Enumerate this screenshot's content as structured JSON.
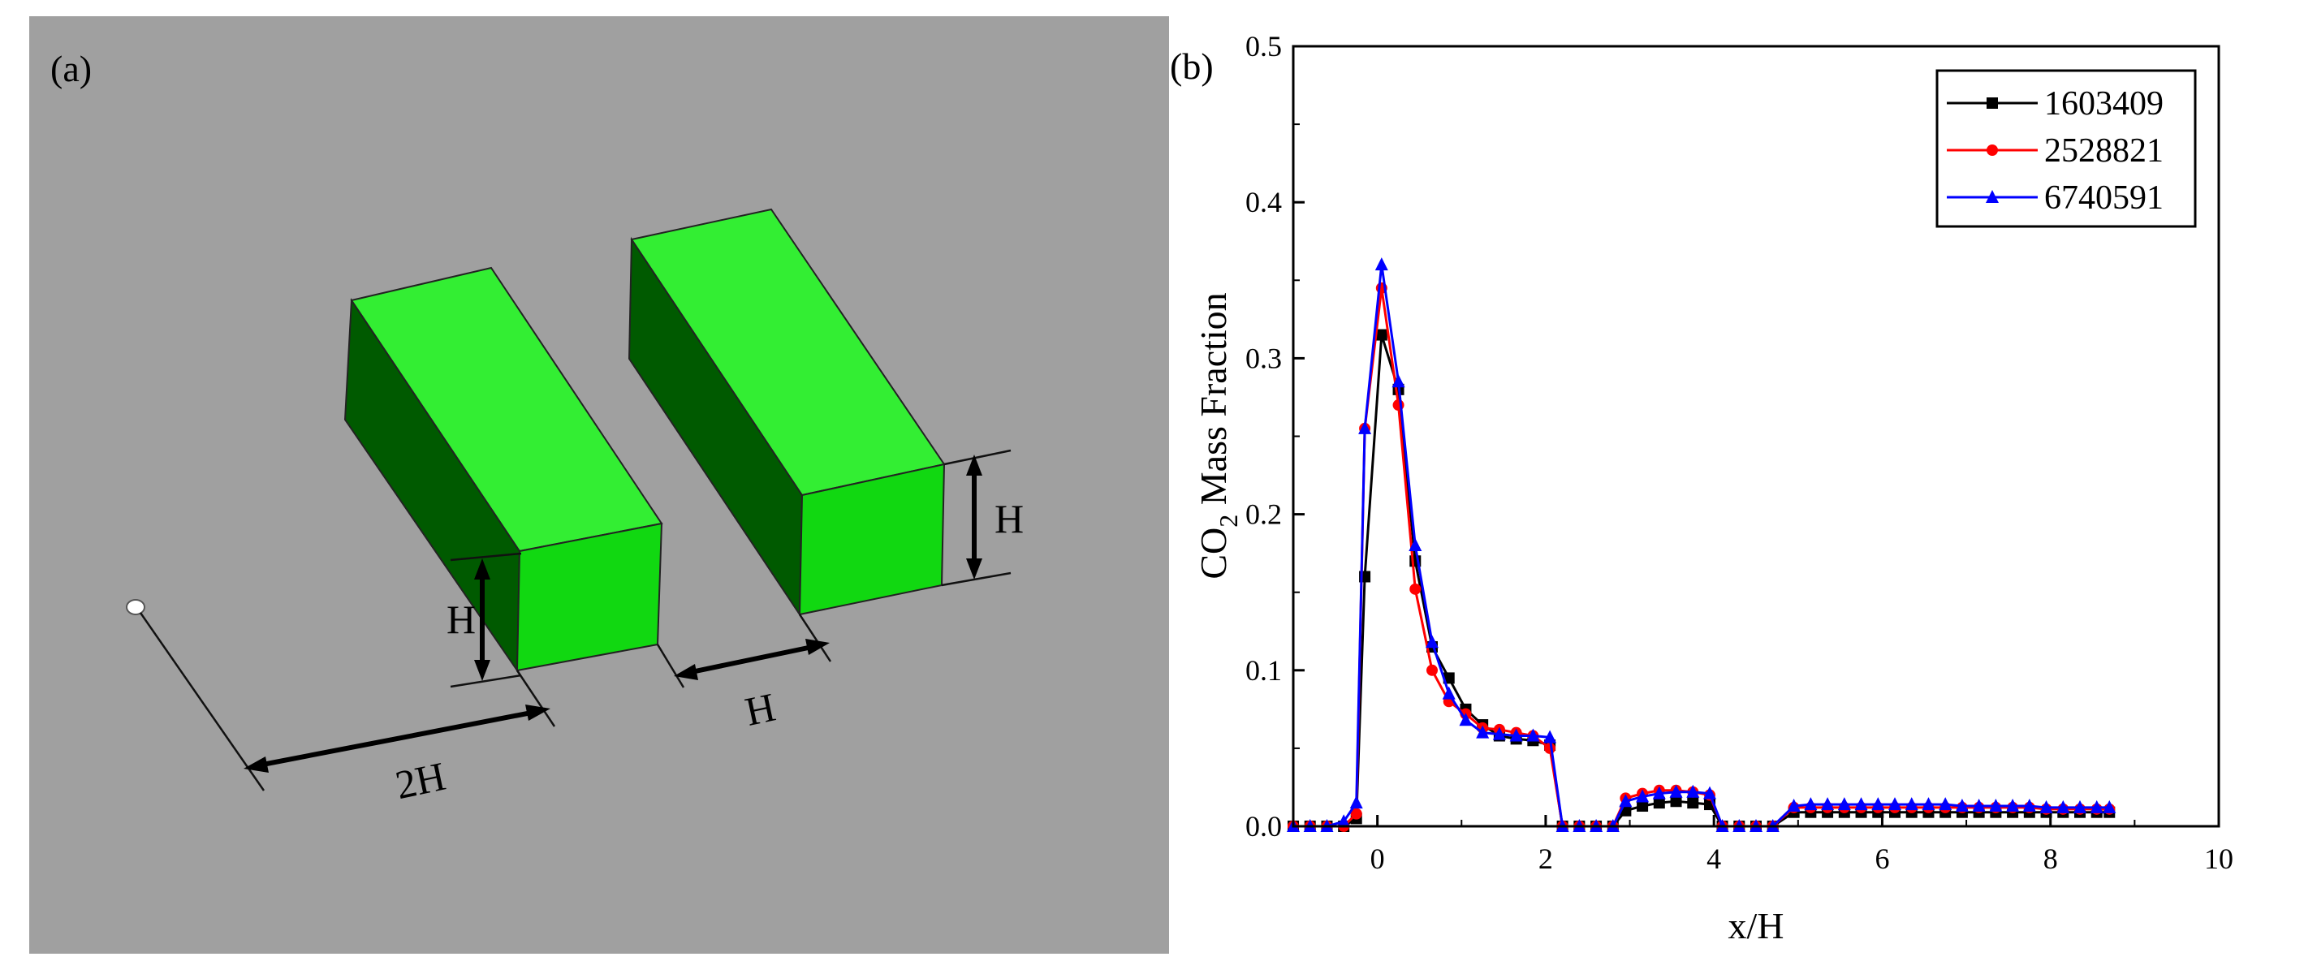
{
  "panel_a": {
    "label": "(a)",
    "dim_left_height": "H",
    "dim_right_height": "H",
    "dim_gap": "H",
    "dim_upstream": "2H",
    "colors": {
      "background": "#a0a0a0",
      "block_top": "#33ee33",
      "block_side": "#005a00",
      "block_front": "#11d811",
      "edge": "#222222"
    }
  },
  "panel_b": {
    "label": "(b)"
  },
  "chart_data": {
    "type": "line",
    "title": "",
    "xlabel": "x/H",
    "ylabel_main": "CO",
    "ylabel_sub": "2",
    "ylabel_rest": " Mass Fraction",
    "xlim": [
      -1,
      10
    ],
    "ylim": [
      0,
      0.5
    ],
    "xticks": [
      0,
      2,
      4,
      6,
      8,
      10
    ],
    "xtick_labels": [
      "0",
      "2",
      "4",
      "6",
      "8",
      "10"
    ],
    "yticks": [
      0.0,
      0.1,
      0.2,
      0.3,
      0.4,
      0.5
    ],
    "ytick_labels": [
      "0.0",
      "0.1",
      "0.2",
      "0.3",
      "0.4",
      "0.5"
    ],
    "legend_position": "top-right",
    "series": [
      {
        "name": "1603409",
        "color": "#000000",
        "marker": "square",
        "x": [
          -1.0,
          -0.8,
          -0.6,
          -0.4,
          -0.25,
          -0.15,
          0.05,
          0.25,
          0.45,
          0.65,
          0.85,
          1.05,
          1.25,
          1.45,
          1.65,
          1.85,
          2.05,
          2.2,
          2.4,
          2.6,
          2.8,
          2.95,
          3.15,
          3.35,
          3.55,
          3.75,
          3.95,
          4.1,
          4.3,
          4.5,
          4.7,
          4.95,
          5.15,
          5.35,
          5.55,
          5.75,
          5.95,
          6.15,
          6.35,
          6.55,
          6.75,
          6.95,
          7.15,
          7.35,
          7.55,
          7.75,
          7.95,
          8.15,
          8.35,
          8.55,
          8.7
        ],
        "y": [
          0.0,
          0.0,
          0.0,
          0.0,
          0.005,
          0.16,
          0.315,
          0.28,
          0.17,
          0.115,
          0.095,
          0.075,
          0.065,
          0.058,
          0.056,
          0.055,
          0.052,
          0.0,
          0.0,
          0.0,
          0.0,
          0.01,
          0.013,
          0.015,
          0.016,
          0.015,
          0.014,
          0.0,
          0.0,
          0.0,
          0.0,
          0.009,
          0.009,
          0.009,
          0.009,
          0.009,
          0.009,
          0.009,
          0.009,
          0.009,
          0.009,
          0.009,
          0.009,
          0.009,
          0.009,
          0.009,
          0.009,
          0.009,
          0.009,
          0.009,
          0.009
        ]
      },
      {
        "name": "2528821",
        "color": "#ff0000",
        "marker": "circle",
        "x": [
          -1.0,
          -0.8,
          -0.6,
          -0.4,
          -0.25,
          -0.15,
          0.05,
          0.25,
          0.45,
          0.65,
          0.85,
          1.05,
          1.25,
          1.45,
          1.65,
          1.85,
          2.05,
          2.2,
          2.4,
          2.6,
          2.8,
          2.95,
          3.15,
          3.35,
          3.55,
          3.75,
          3.95,
          4.1,
          4.3,
          4.5,
          4.7,
          4.95,
          5.15,
          5.35,
          5.55,
          5.75,
          5.95,
          6.15,
          6.35,
          6.55,
          6.75,
          6.95,
          7.15,
          7.35,
          7.55,
          7.75,
          7.95,
          8.15,
          8.35,
          8.55,
          8.7
        ],
        "y": [
          0.0,
          0.0,
          0.0,
          0.0,
          0.008,
          0.255,
          0.345,
          0.27,
          0.152,
          0.1,
          0.08,
          0.072,
          0.063,
          0.062,
          0.06,
          0.058,
          0.05,
          0.0,
          0.0,
          0.0,
          0.0,
          0.018,
          0.021,
          0.023,
          0.023,
          0.022,
          0.02,
          0.0,
          0.0,
          0.0,
          0.0,
          0.012,
          0.012,
          0.012,
          0.012,
          0.012,
          0.012,
          0.012,
          0.012,
          0.012,
          0.012,
          0.012,
          0.012,
          0.012,
          0.012,
          0.012,
          0.011,
          0.011,
          0.011,
          0.011,
          0.011
        ]
      },
      {
        "name": "6740591",
        "color": "#0000ff",
        "marker": "triangle",
        "x": [
          -1.0,
          -0.8,
          -0.6,
          -0.4,
          -0.25,
          -0.15,
          0.05,
          0.25,
          0.45,
          0.65,
          0.85,
          1.05,
          1.25,
          1.45,
          1.65,
          1.85,
          2.05,
          2.2,
          2.4,
          2.6,
          2.8,
          2.95,
          3.15,
          3.35,
          3.55,
          3.75,
          3.95,
          4.1,
          4.3,
          4.5,
          4.7,
          4.95,
          5.15,
          5.35,
          5.55,
          5.75,
          5.95,
          6.15,
          6.35,
          6.55,
          6.75,
          6.95,
          7.15,
          7.35,
          7.55,
          7.75,
          7.95,
          8.15,
          8.35,
          8.55,
          8.7
        ],
        "y": [
          0.0,
          0.0,
          0.0,
          0.003,
          0.015,
          0.255,
          0.36,
          0.285,
          0.18,
          0.118,
          0.085,
          0.068,
          0.06,
          0.059,
          0.058,
          0.058,
          0.057,
          0.0,
          0.0,
          0.0,
          0.0,
          0.016,
          0.019,
          0.021,
          0.022,
          0.022,
          0.021,
          0.0,
          0.0,
          0.0,
          0.0,
          0.013,
          0.014,
          0.014,
          0.014,
          0.014,
          0.014,
          0.014,
          0.014,
          0.014,
          0.014,
          0.013,
          0.013,
          0.013,
          0.013,
          0.013,
          0.012,
          0.012,
          0.012,
          0.012,
          0.012
        ]
      }
    ]
  }
}
